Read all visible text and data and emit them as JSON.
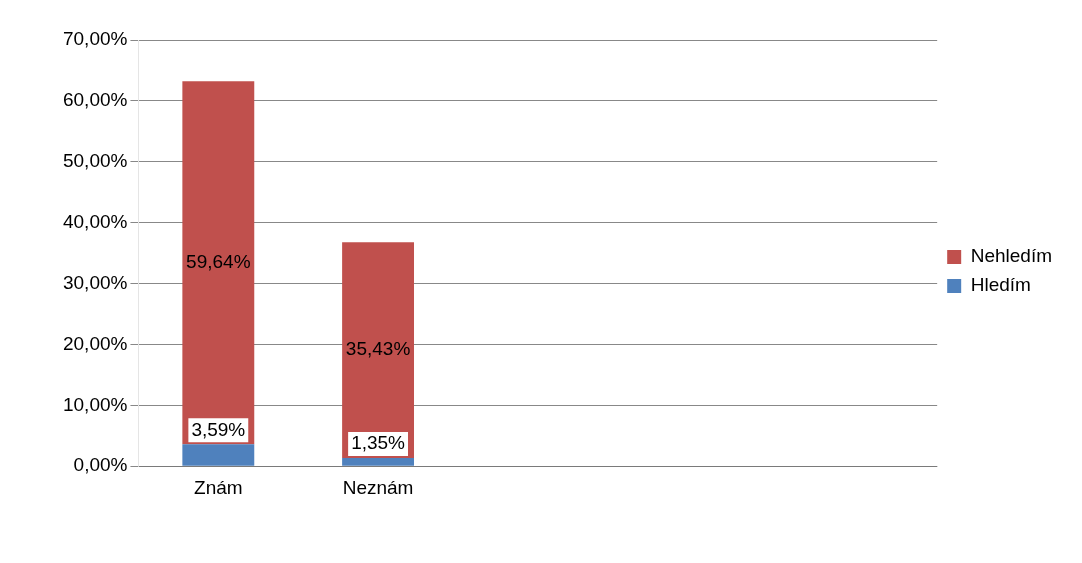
{
  "chart_data": {
    "type": "bar",
    "stacked": true,
    "categories": [
      "Znám",
      "Neznám",
      null,
      null,
      null
    ],
    "series": [
      {
        "name": "Hledím",
        "color": "#4f81bd",
        "values": [
          3.59,
          1.35,
          null,
          null,
          null
        ],
        "value_labels": [
          "3,59%",
          "1,35%",
          null,
          null,
          null
        ]
      },
      {
        "name": "Nehledím",
        "color": "#c0504d",
        "values": [
          59.64,
          35.43,
          null,
          null,
          null
        ],
        "value_labels": [
          "59,64%",
          "35,43%",
          null,
          null,
          null
        ]
      }
    ],
    "ylim": [
      0,
      70
    ],
    "yticks": [
      {
        "value": 0,
        "label": "0,00%"
      },
      {
        "value": 10,
        "label": "10,00%"
      },
      {
        "value": 20,
        "label": "20,00%"
      },
      {
        "value": 30,
        "label": "30,00%"
      },
      {
        "value": 40,
        "label": "40,00%"
      },
      {
        "value": 50,
        "label": "50,00%"
      },
      {
        "value": 60,
        "label": "60,00%"
      },
      {
        "value": 70,
        "label": "70,00%"
      }
    ],
    "grid": "y",
    "legend": "right"
  }
}
